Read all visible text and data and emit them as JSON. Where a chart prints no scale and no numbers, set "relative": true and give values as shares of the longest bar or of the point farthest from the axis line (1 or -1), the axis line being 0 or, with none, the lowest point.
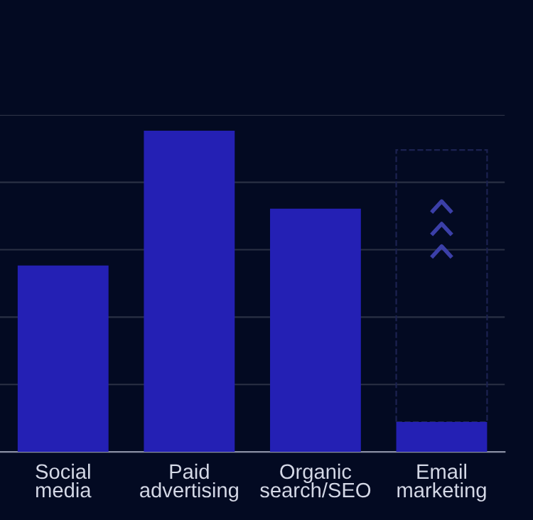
{
  "chart_data": {
    "type": "bar",
    "relative": true,
    "grid": "y",
    "categories": [
      "Social\nmedia",
      "Paid\nadvertising",
      "Organic\nsearch/SEO",
      "Email\nmarketing"
    ],
    "values": [
      0.58,
      1,
      0.757,
      0.093
    ],
    "color": "#2420b4"
  }
}
